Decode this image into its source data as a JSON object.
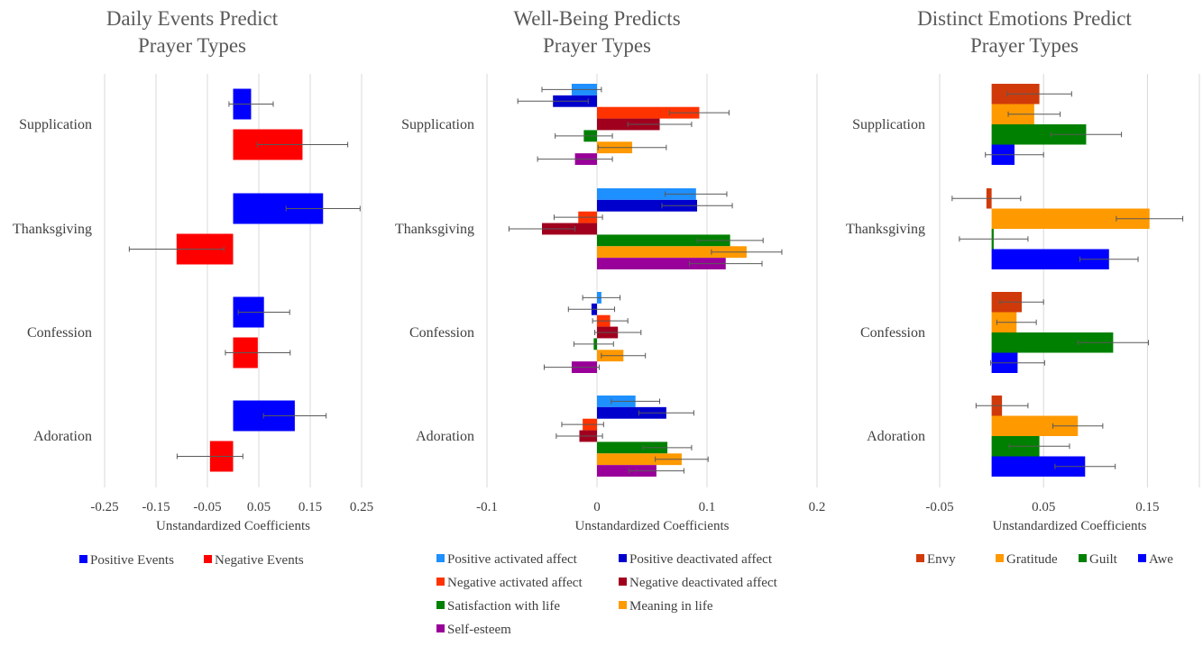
{
  "chart_data": [
    {
      "type": "bar",
      "orientation": "horizontal",
      "title": "Daily Events Predict Prayer Types",
      "title_lines": [
        "Daily Events Predict",
        "Prayer Types"
      ],
      "categories": [
        "Supplication",
        "Thanksgiving",
        "Confession",
        "Adoration"
      ],
      "xlabel": "Unstandardized Coefficients",
      "xlim": [
        -0.25,
        0.25
      ],
      "xticks": [
        -0.25,
        -0.15,
        -0.05,
        0.05,
        0.15,
        0.25
      ],
      "xtick_labels": [
        "-0.25",
        "-0.15",
        "-0.05",
        "0.05",
        "0.15",
        "0.25"
      ],
      "grid": true,
      "legend_position": "bottom",
      "series": [
        {
          "name": "Positive Events",
          "color": "#0000ff",
          "values": [
            0.035,
            0.175,
            0.06,
            0.12
          ],
          "err": [
            0.043,
            0.072,
            0.05,
            0.061
          ]
        },
        {
          "name": "Negative Events",
          "color": "#ff0000",
          "values": [
            0.135,
            -0.11,
            0.048,
            -0.045
          ],
          "err": [
            0.088,
            0.092,
            0.063,
            0.064
          ]
        }
      ]
    },
    {
      "type": "bar",
      "orientation": "horizontal",
      "title": "Well-Being Predicts Prayer Types",
      "title_lines": [
        "Well-Being Predicts",
        "Prayer Types"
      ],
      "categories": [
        "Supplication",
        "Thanksgiving",
        "Confession",
        "Adoration"
      ],
      "xlabel": "Unstandardized Coefficients",
      "xlim": [
        -0.1,
        0.2
      ],
      "xticks": [
        -0.1,
        0,
        0.1,
        0.2
      ],
      "xtick_labels": [
        "-0.1",
        "0",
        "0.1",
        "0.2"
      ],
      "grid": true,
      "legend_position": "bottom",
      "series": [
        {
          "name": "Positive activated affect",
          "color": "#1e90ff",
          "values": [
            -0.023,
            0.09,
            0.004,
            0.035
          ],
          "err": [
            0.027,
            0.028,
            0.017,
            0.022
          ]
        },
        {
          "name": "Positive deactivated affect",
          "color": "#0000cd",
          "values": [
            -0.04,
            0.091,
            -0.005,
            0.063
          ],
          "err": [
            0.032,
            0.032,
            0.021,
            0.025
          ]
        },
        {
          "name": "Negative activated affect",
          "color": "#ff3300",
          "values": [
            0.093,
            -0.017,
            0.012,
            -0.013
          ],
          "err": [
            0.027,
            0.022,
            0.016,
            0.019
          ]
        },
        {
          "name": "Negative deactivated affect",
          "color": "#a0001e",
          "values": [
            0.057,
            -0.05,
            0.019,
            -0.016
          ],
          "err": [
            0.029,
            0.03,
            0.021,
            0.021
          ]
        },
        {
          "name": "Satisfaction with life",
          "color": "#008000",
          "values": [
            -0.012,
            0.121,
            -0.003,
            0.064
          ],
          "err": [
            0.026,
            0.03,
            0.018,
            0.022
          ]
        },
        {
          "name": "Meaning in life",
          "color": "#ff9900",
          "values": [
            0.032,
            0.136,
            0.024,
            0.077
          ],
          "err": [
            0.031,
            0.032,
            0.02,
            0.024
          ]
        },
        {
          "name": "Self-esteem",
          "color": "#990099",
          "values": [
            -0.02,
            0.117,
            -0.023,
            0.054
          ],
          "err": [
            0.034,
            0.033,
            0.025,
            0.025
          ]
        }
      ]
    },
    {
      "type": "bar",
      "orientation": "horizontal",
      "title": "Distinct Emotions Predict Prayer Types",
      "title_lines": [
        "Distinct Emotions Predict",
        "Prayer Types"
      ],
      "categories": [
        "Supplication",
        "Thanksgiving",
        "Confession",
        "Adoration"
      ],
      "xlabel": "Unstandardized Coefficients",
      "xlim": [
        -0.05,
        0.2
      ],
      "xticks": [
        -0.05,
        0.05,
        0.15
      ],
      "xtick_labels": [
        "-0.05",
        "0.05",
        "0.15"
      ],
      "grid": true,
      "legend_position": "bottom",
      "series": [
        {
          "name": "Envy",
          "color": "#d03a0a",
          "values": [
            0.046,
            -0.005,
            0.029,
            0.01
          ],
          "err": [
            0.031,
            0.033,
            0.021,
            0.025
          ]
        },
        {
          "name": "Gratitude",
          "color": "#ff9900",
          "values": [
            0.041,
            0.152,
            0.024,
            0.083
          ],
          "err": [
            0.025,
            0.032,
            0.019,
            0.024
          ]
        },
        {
          "name": "Guilt",
          "color": "#008000",
          "values": [
            0.091,
            0.002,
            0.117,
            0.046
          ],
          "err": [
            0.034,
            0.033,
            0.034,
            0.029
          ]
        },
        {
          "name": "Awe",
          "color": "#0000ff",
          "values": [
            0.022,
            0.113,
            0.025,
            0.09
          ],
          "err": [
            0.028,
            0.028,
            0.026,
            0.029
          ]
        }
      ]
    }
  ]
}
